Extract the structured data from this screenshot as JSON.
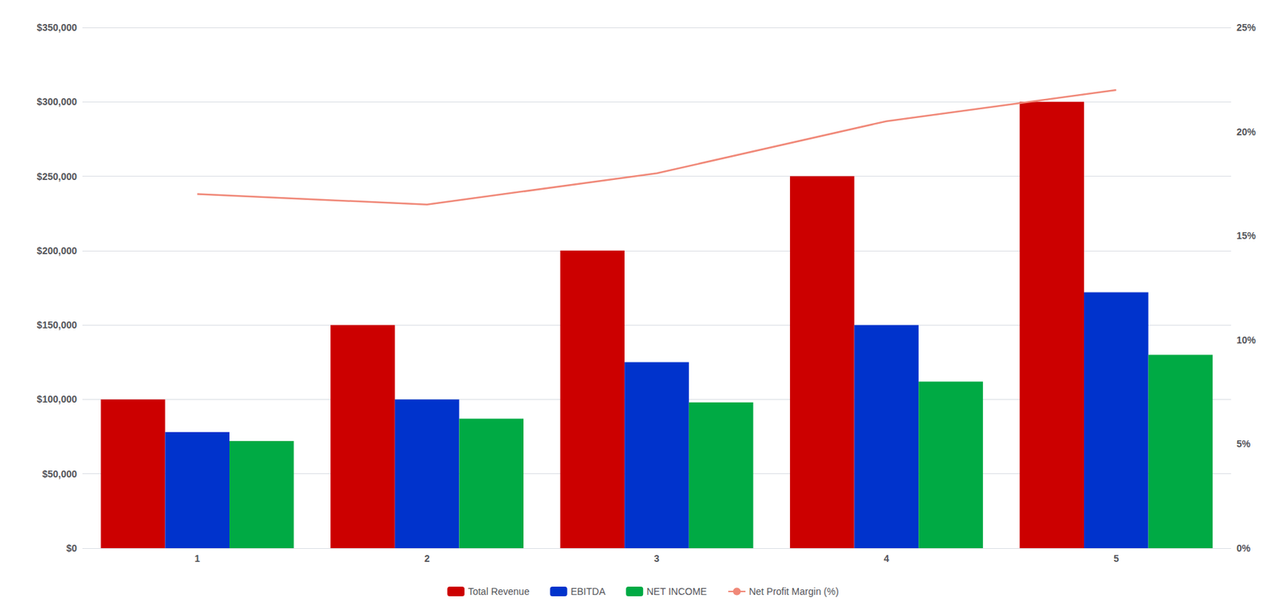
{
  "chart_data": {
    "type": "bar",
    "categories": [
      "1",
      "2",
      "3",
      "4",
      "5"
    ],
    "series": [
      {
        "name": "Total Revenue",
        "color": "#cc0000",
        "values": [
          100000,
          150000,
          200000,
          250000,
          300000
        ]
      },
      {
        "name": "EBITDA",
        "color": "#0033cc",
        "values": [
          78000,
          100000,
          125000,
          150000,
          172000
        ]
      },
      {
        "name": "NET INCOME",
        "color": "#00aa44",
        "values": [
          72000,
          87000,
          98000,
          112000,
          130000
        ]
      },
      {
        "name": "Net Profit Margin (%)",
        "type": "line",
        "axis": "y2",
        "color": "#f08878",
        "marker": "none",
        "values": [
          17.0,
          16.5,
          18.0,
          20.5,
          22.0
        ]
      }
    ],
    "ylim": [
      0,
      350000
    ],
    "yticks": [
      {
        "value": 0,
        "label": "$0"
      },
      {
        "value": 50000,
        "label": "$50,000"
      },
      {
        "value": 100000,
        "label": "$100,000"
      },
      {
        "value": 150000,
        "label": "$150,000"
      },
      {
        "value": 200000,
        "label": "$200,000"
      },
      {
        "value": 250000,
        "label": "$250,000"
      },
      {
        "value": 300000,
        "label": "$300,000"
      },
      {
        "value": 350000,
        "label": "$350,000"
      }
    ],
    "y2lim": [
      0,
      25
    ],
    "y2ticks": [
      {
        "value": 0,
        "label": "0%"
      },
      {
        "value": 5,
        "label": "5%"
      },
      {
        "value": 10,
        "label": "10%"
      },
      {
        "value": 15,
        "label": "15%"
      },
      {
        "value": 20,
        "label": "20%"
      },
      {
        "value": 25,
        "label": "25%"
      }
    ],
    "grid": true,
    "legend": "bottom"
  }
}
